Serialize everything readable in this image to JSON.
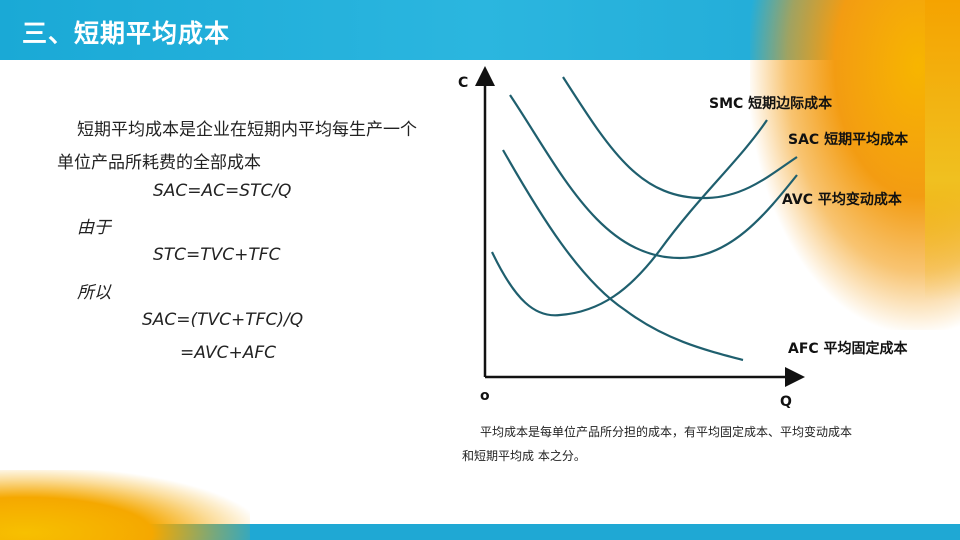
{
  "title": "三、短期平均成本",
  "body": {
    "definition": "短期平均成本是企业在短期内平均每生产一个",
    "definition_cont": "单位产品所耗费的全部成本",
    "formula1": "SAC=AC=STC/Q",
    "because": "由于",
    "formula2": "STC=TVC+TFC",
    "therefore": "所以",
    "formula3": "SAC=(TVC+TFC)/Q",
    "formula4": "=AVC+AFC"
  },
  "diagram": {
    "y_axis": "C",
    "x_axis": "Q",
    "origin": "o",
    "curve_color": "#1f5f6e",
    "labels": {
      "smc": "SMC 短期边际成本",
      "sac": "SAC 短期平均成本",
      "avc": "AVC 平均变动成本",
      "afc": "AFC 平均固定成本"
    }
  },
  "caption": "平均成本是每单位产品所分担的成本，有平均固定成本、平均变动成本和短期平均成 本之分。"
}
